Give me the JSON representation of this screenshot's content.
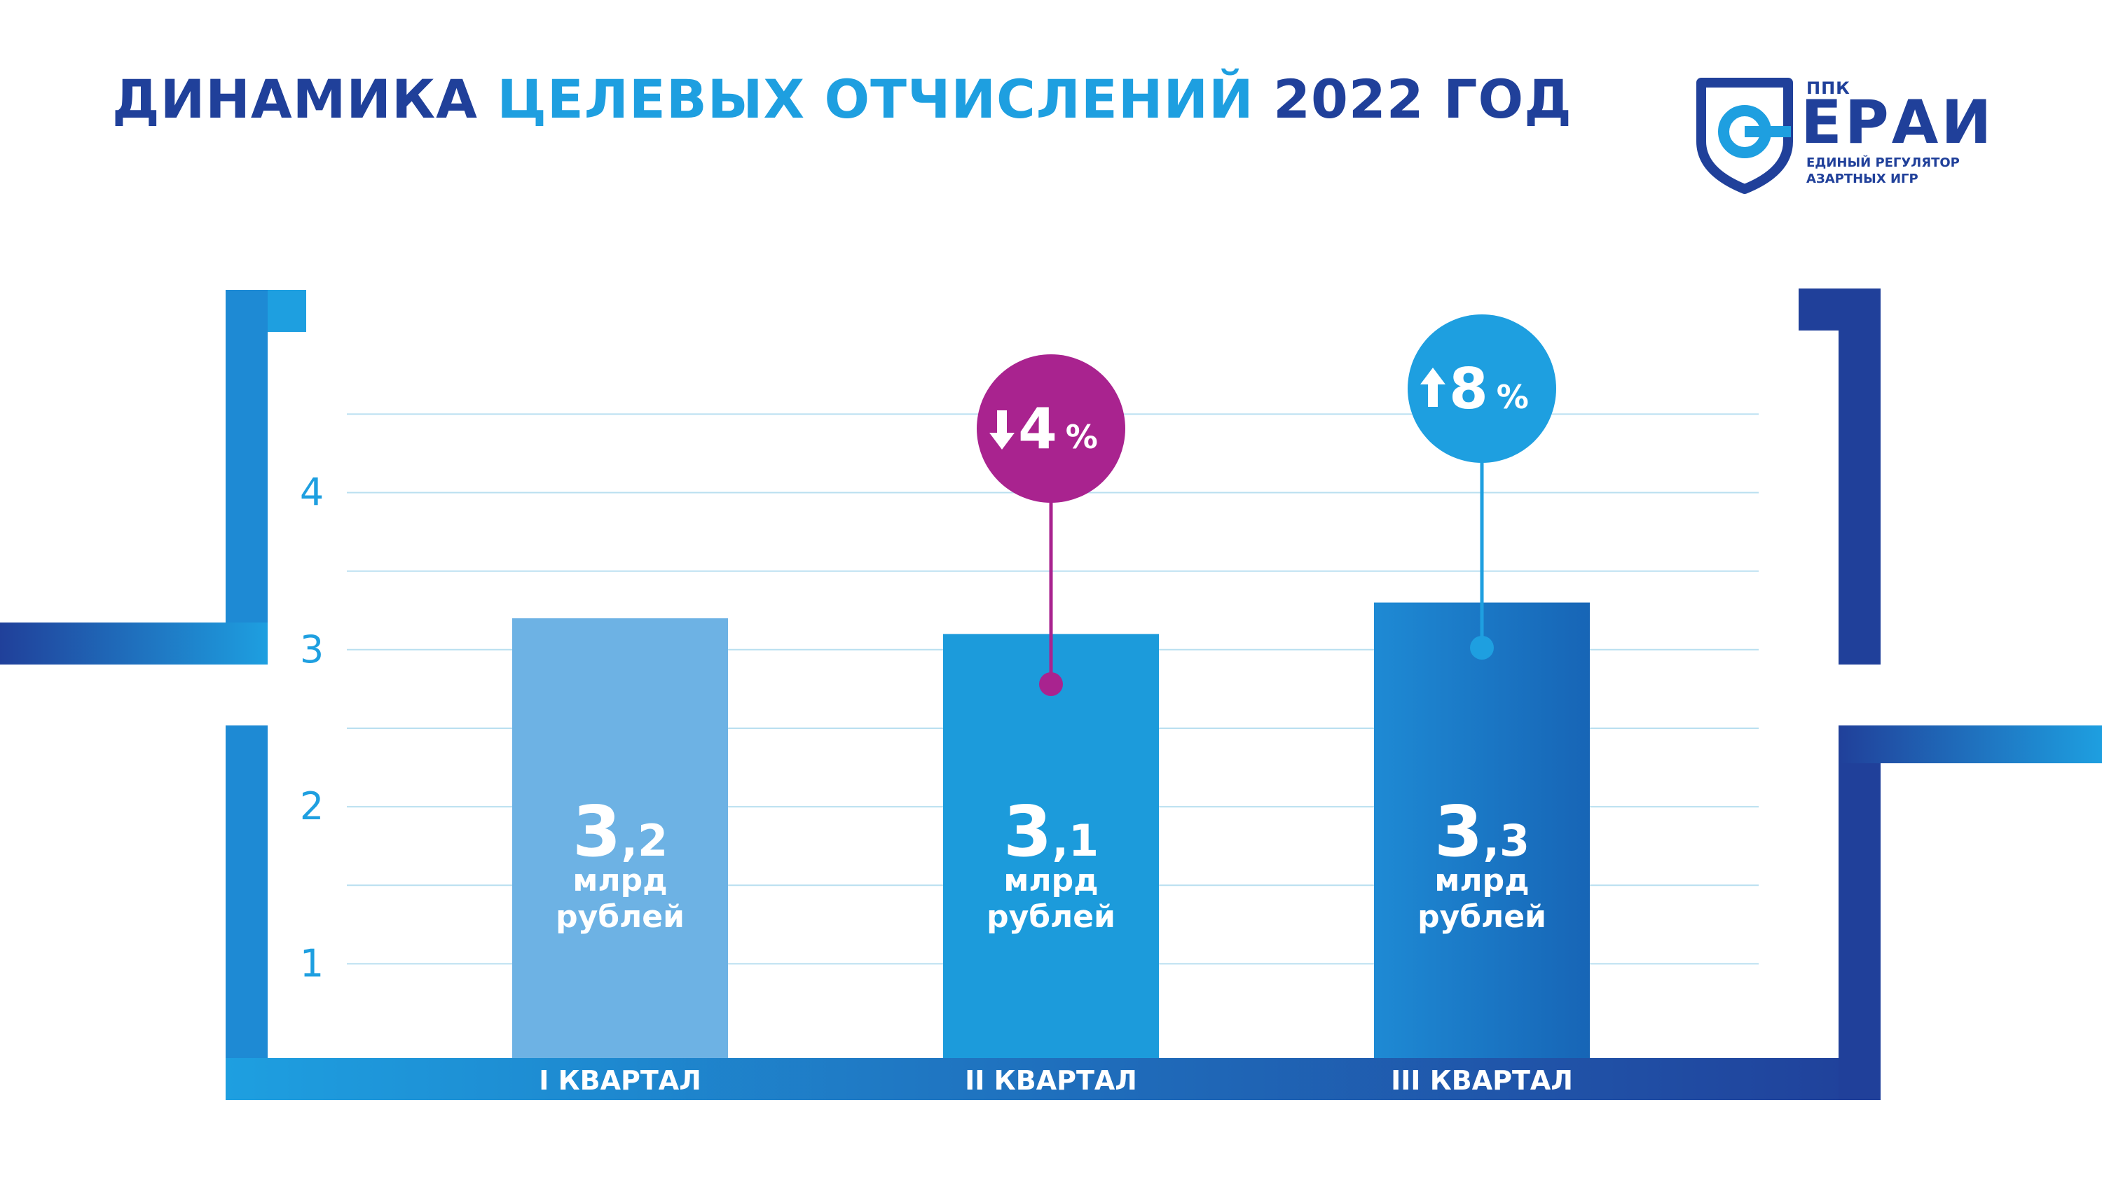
{
  "title": {
    "part1": "ДИНАМИКА",
    "part2": "ЦЕЛЕВЫХ ОТЧИСЛЕНИЙ",
    "part3": "2022 ГОД"
  },
  "logo": {
    "small": "ППК",
    "big": "ЕРАИ",
    "line1": "ЕДИНЫЙ РЕГУЛЯТОР",
    "line2": "АЗАРТНЫХ ИГР",
    "icon": "shield-icon"
  },
  "colors": {
    "dark_blue": "#20409a",
    "light_blue": "#1e9fe0",
    "magenta": "#a9238f",
    "bar1": "#6db2e4",
    "bar2": "#1c9bdb",
    "bar3": "#1a6fbd"
  },
  "chart_data": {
    "type": "bar",
    "categories": [
      "I КВАРТАЛ",
      "II КВАРТАЛ",
      "III КВАРТАЛ"
    ],
    "values": [
      3.2,
      3.1,
      3.3
    ],
    "value_labels": [
      {
        "int": "3",
        "dec": ",2",
        "unit1": "млрд",
        "unit2": "рублей"
      },
      {
        "int": "3",
        "dec": ",1",
        "unit1": "млрд",
        "unit2": "рублей"
      },
      {
        "int": "3",
        "dec": ",3",
        "unit1": "млрд",
        "unit2": "рублей"
      }
    ],
    "y_ticks": [
      1,
      2,
      3,
      4
    ],
    "y_tick_labels": [
      "1",
      "2",
      "3",
      "4"
    ],
    "ylim": [
      0.4,
      4.5
    ],
    "grid": true,
    "annotations": [
      {
        "category_index": 1,
        "direction": "down",
        "value": "4",
        "unit": "%",
        "color": "#a9238f"
      },
      {
        "category_index": 2,
        "direction": "up",
        "value": "8",
        "unit": "%",
        "color": "#1e9fe0"
      }
    ]
  }
}
